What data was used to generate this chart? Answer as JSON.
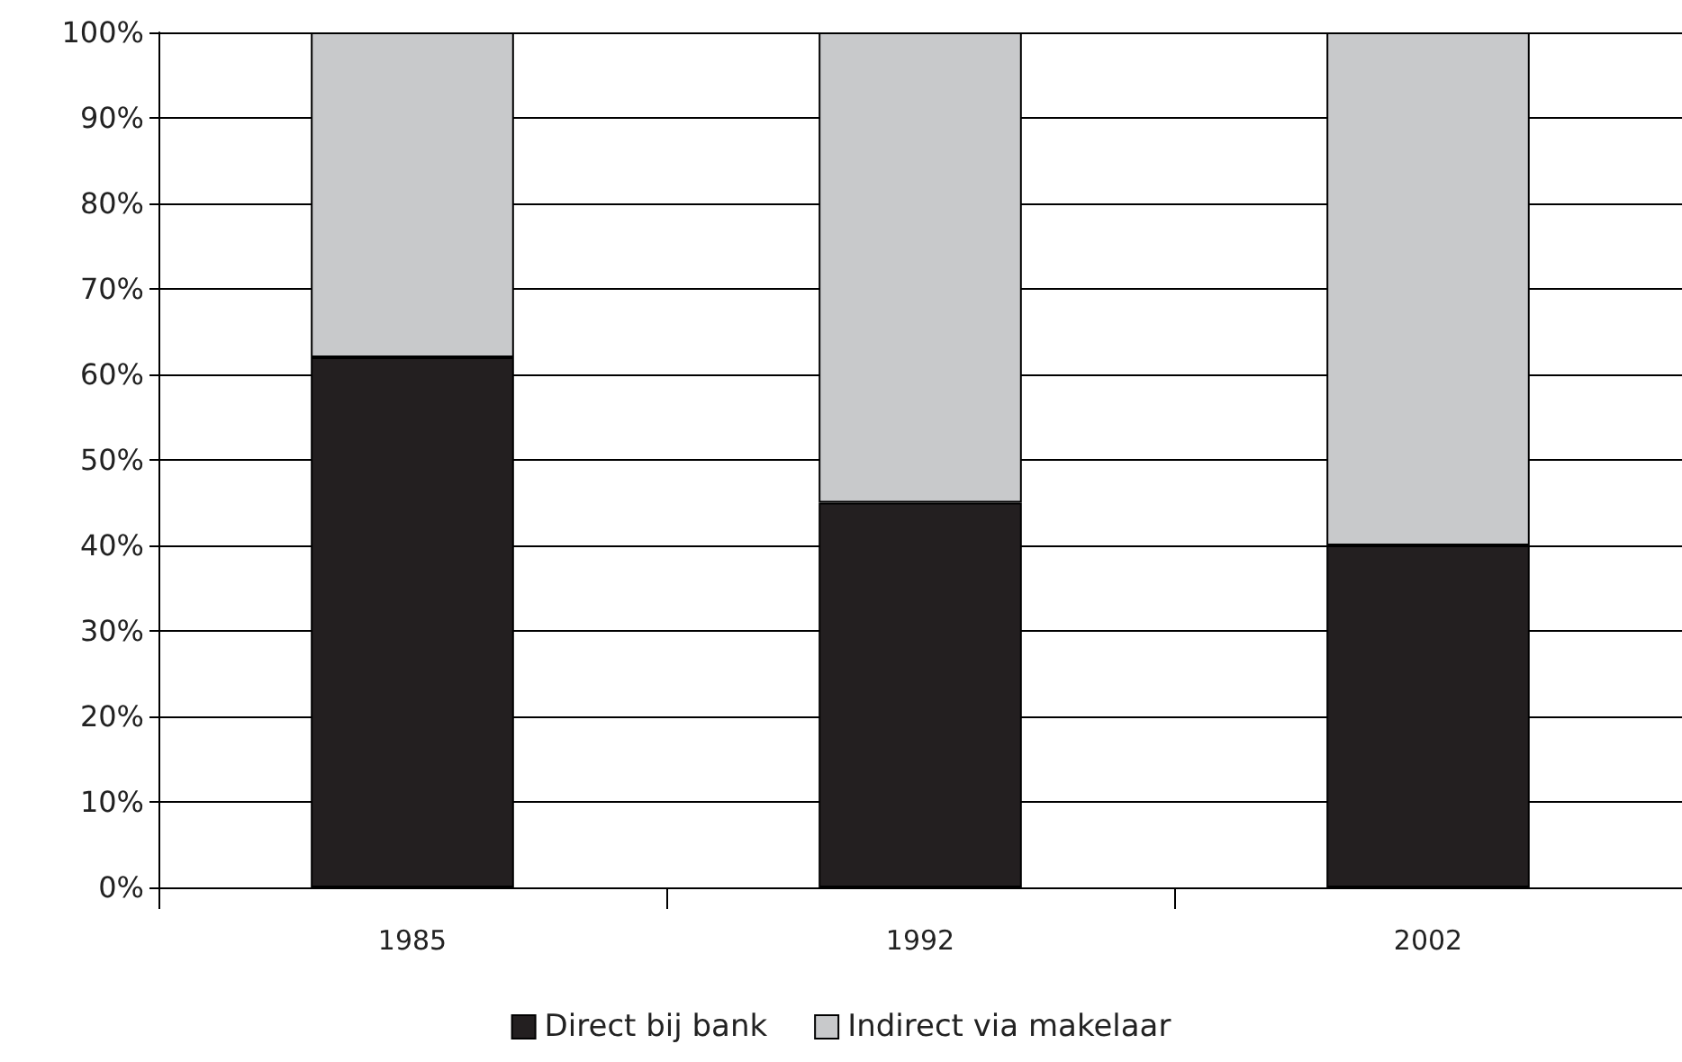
{
  "chart_data": {
    "type": "bar",
    "stacked": true,
    "categories": [
      "1985",
      "1992",
      "2002"
    ],
    "series": [
      {
        "name": "Direct bij bank",
        "color": "#231f20",
        "values": [
          62,
          45,
          40
        ]
      },
      {
        "name": "Indirect via makelaar",
        "color": "#c8c9cb",
        "values": [
          38,
          55,
          60
        ]
      }
    ],
    "ylim": [
      0,
      100
    ],
    "yticks": [
      {
        "value": 0,
        "label": "0%"
      },
      {
        "value": 10,
        "label": "10%"
      },
      {
        "value": 20,
        "label": "20%"
      },
      {
        "value": 30,
        "label": "30%"
      },
      {
        "value": 40,
        "label": "40%"
      },
      {
        "value": 50,
        "label": "50%"
      },
      {
        "value": 60,
        "label": "60%"
      },
      {
        "value": 70,
        "label": "70%"
      },
      {
        "value": 80,
        "label": "80%"
      },
      {
        "value": 90,
        "label": "90%"
      },
      {
        "value": 100,
        "label": "100%"
      }
    ],
    "grid": "y",
    "legend": "bottom"
  }
}
